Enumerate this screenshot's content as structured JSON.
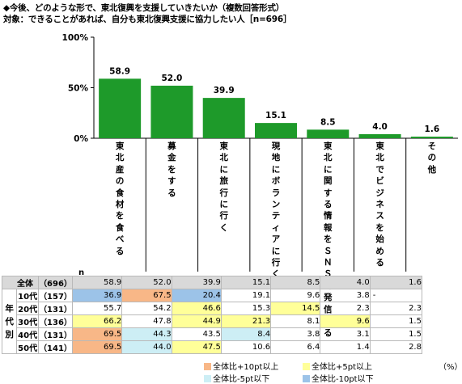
{
  "header": {
    "title_line1": "◆今後、どのような形で、東北復興を支援していきたいか（複数回答形式）",
    "title_line2": "対象：できることがあれば、自分も東北復興支援に協力したい人［n=696］"
  },
  "colors": {
    "bar": "#1e9a2a",
    "hi10": "#f8b787",
    "hi5": "#ffff99",
    "lo5": "#cdeef5",
    "lo10": "#9cc3e8",
    "total_row_bg": "#d9d9d9"
  },
  "chart_data": {
    "type": "bar",
    "title": "◆今後、どのような形で、東北復興を支援していきたいか（複数回答形式）",
    "subtitle": "対象：できることがあれば、自分も東北復興支援に協力したい人［n=696］",
    "categories": [
      "東北産の食材を食べる",
      "募金をする",
      "東北に旅行に行く",
      "現地にボランティアに行く",
      "東北に関する情報をＳＮＳで発信する",
      "東北でビジネスを始める",
      "その他"
    ],
    "values": [
      58.9,
      52.0,
      39.9,
      15.1,
      8.5,
      4.0,
      1.6
    ],
    "value_labels": [
      "58.9",
      "52.0",
      "39.9",
      "15.1",
      "8.5",
      "4.0",
      "1.6"
    ],
    "y_ticks": [
      0,
      50,
      100
    ],
    "y_tick_labels": [
      "0%",
      "50%",
      "100%"
    ],
    "ylim": [
      0,
      100
    ],
    "grid": false,
    "legend": "none"
  },
  "table": {
    "n_label": "n",
    "vertical_group_label": "年代別",
    "rows": [
      {
        "label": "全体",
        "n": "（696）",
        "values": [
          "58.9",
          "52.0",
          "39.9",
          "15.1",
          "8.5",
          "4.0",
          "1.6"
        ],
        "hl": [
          "",
          "",
          "",
          "",
          "",
          "",
          ""
        ]
      },
      {
        "label": "10代",
        "n": "（157）",
        "values": [
          "36.9",
          "67.5",
          "20.4",
          "19.1",
          "9.6",
          "3.8",
          "-"
        ],
        "hl": [
          "lo10",
          "hi10",
          "lo10",
          "",
          "",
          "",
          ""
        ]
      },
      {
        "label": "20代",
        "n": "（131）",
        "values": [
          "55.7",
          "54.2",
          "46.6",
          "15.3",
          "14.5",
          "2.3",
          "2.3"
        ],
        "hl": [
          "",
          "",
          "hi5",
          "",
          "hi5",
          "",
          ""
        ]
      },
      {
        "label": "30代",
        "n": "（136）",
        "values": [
          "66.2",
          "47.8",
          "44.9",
          "21.3",
          "8.1",
          "9.6",
          "1.5"
        ],
        "hl": [
          "hi5",
          "",
          "hi5",
          "hi5",
          "",
          "hi5",
          ""
        ]
      },
      {
        "label": "40代",
        "n": "（131）",
        "values": [
          "69.5",
          "44.3",
          "43.5",
          "8.4",
          "3.8",
          "3.1",
          "1.5"
        ],
        "hl": [
          "hi10",
          "lo5",
          "",
          "lo5",
          "",
          "",
          ""
        ]
      },
      {
        "label": "50代",
        "n": "（141）",
        "values": [
          "69.5",
          "44.0",
          "47.5",
          "10.6",
          "6.4",
          "1.4",
          "2.8"
        ],
        "hl": [
          "hi10",
          "lo5",
          "hi5",
          "",
          "",
          "",
          ""
        ]
      }
    ]
  },
  "legend": {
    "hi10": "全体比+10pt以上",
    "hi5": "全体比+5pt以上",
    "lo5": "全体比-5pt以下",
    "lo10": "全体比-10pt以下",
    "unit": "（%）"
  }
}
